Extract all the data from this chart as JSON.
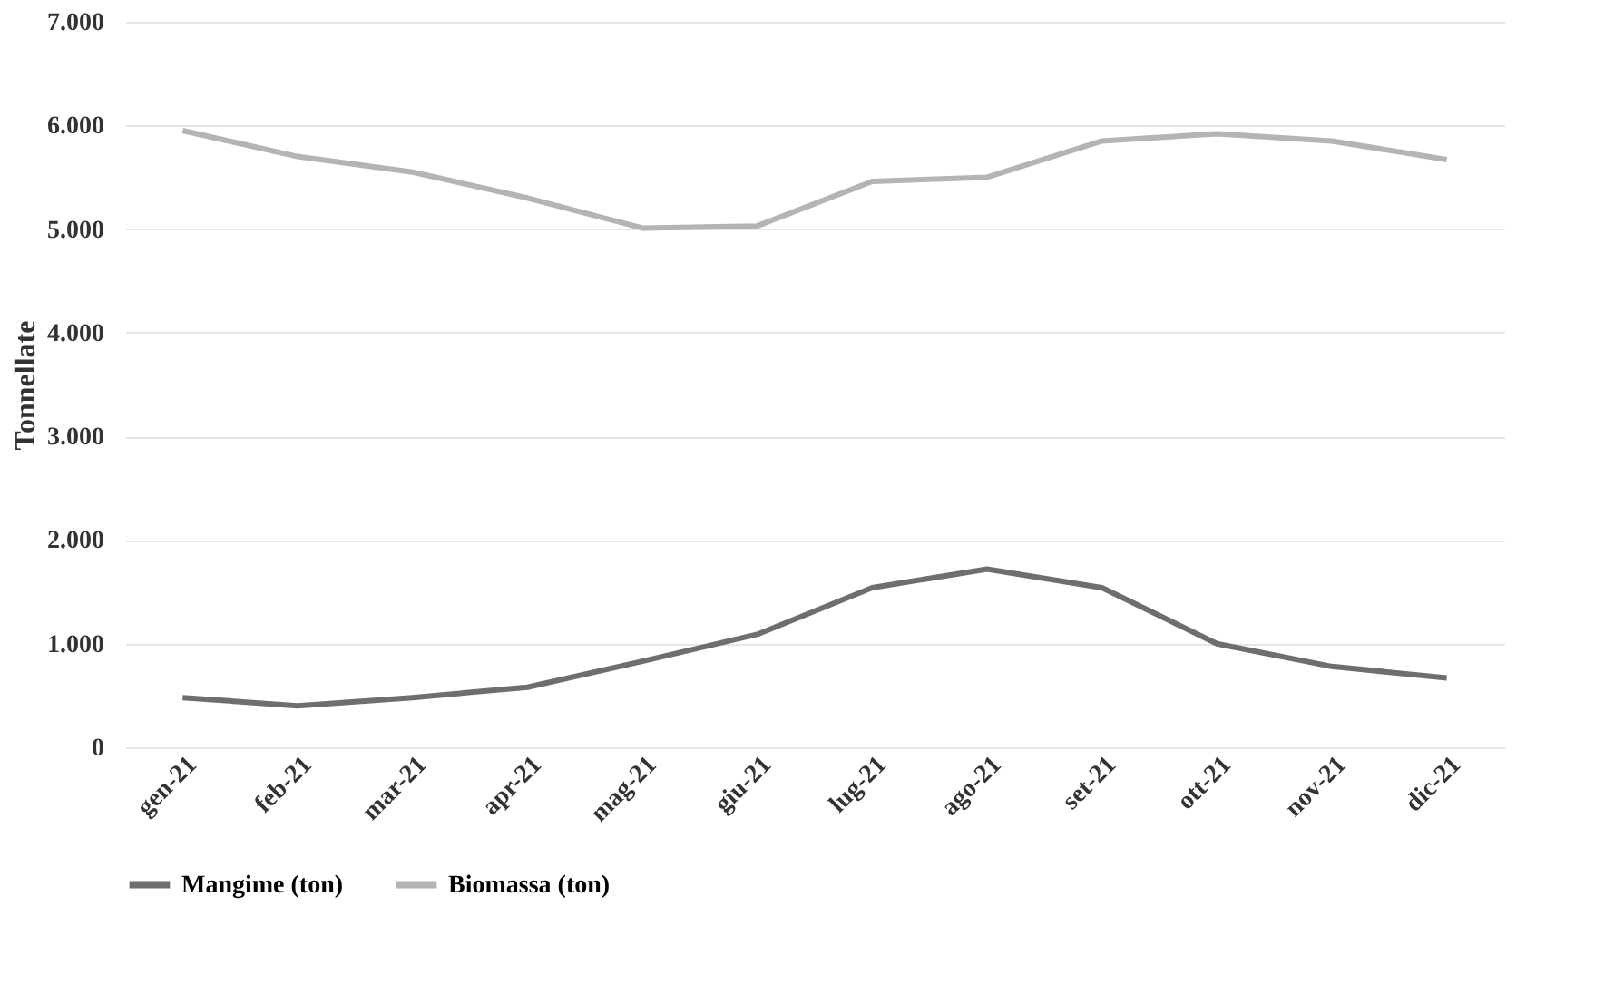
{
  "chart_data": {
    "type": "line",
    "ylabel": "Tonnellate",
    "categories": [
      "gen-21",
      "feb-21",
      "mar-21",
      "apr-21",
      "mag-21",
      "giu-21",
      "lug-21",
      "ago-21",
      "set-21",
      "ott-21",
      "nov-21",
      "dic-21"
    ],
    "series": [
      {
        "name": "Mangime (ton)",
        "color": "#6e6e6e",
        "values": [
          480,
          400,
          480,
          580,
          830,
          1090,
          1540,
          1720,
          1540,
          1000,
          780,
          670
        ]
      },
      {
        "name": "Biomassa (ton)",
        "color": "#b4b4b4",
        "values": [
          5950,
          5700,
          5550,
          5300,
          5010,
          5030,
          5460,
          5500,
          5850,
          5920,
          5850,
          5670
        ]
      }
    ],
    "ylim": [
      0,
      7000
    ],
    "yticks": [
      {
        "value": 0,
        "label": "0"
      },
      {
        "value": 1000,
        "label": "1.000"
      },
      {
        "value": 2000,
        "label": "2.000"
      },
      {
        "value": 3000,
        "label": "3.000"
      },
      {
        "value": 4000,
        "label": "4.000"
      },
      {
        "value": 5000,
        "label": "5.000"
      },
      {
        "value": 6000,
        "label": "6.000"
      },
      {
        "value": 7000,
        "label": "7.000"
      }
    ],
    "grid": "y",
    "legend": "bottom",
    "marker": "none",
    "line_style": "solid"
  }
}
